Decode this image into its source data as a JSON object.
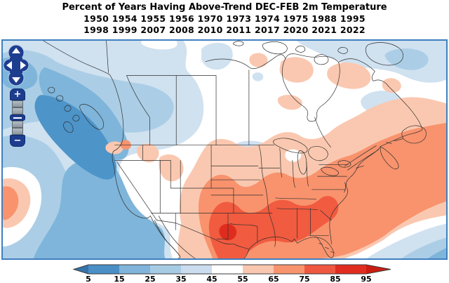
{
  "title": "Percent of Years Having Above-Trend DEC-FEB 2m Temperature",
  "years": {
    "line1": "1950 1954 1955 1956 1970 1973 1974 1975 1988 1995",
    "line2": "1998 1999 2007 2008 2010 2011 2017 2020 2021 2022"
  },
  "colorbar": {
    "ticks": [
      "5",
      "15",
      "25",
      "35",
      "45",
      "55",
      "65",
      "75",
      "85",
      "95"
    ],
    "segment_colors": [
      "#4a90c6",
      "#80b4da",
      "#a8cbe4",
      "#cbdcee",
      "#ffffff",
      "#f9c7b0",
      "#f7946e",
      "#ef5741",
      "#e02d20"
    ],
    "left_arrow_color": "#3773ab",
    "right_arrow_color": "#c91d12",
    "outline_color": "#3a3a3a"
  },
  "palette": {
    "b1": "#4d94c9",
    "b2": "#7fb5da",
    "b3": "#abcee6",
    "b4": "#d0e1f0",
    "w": "#ffffff",
    "r1": "#fac8b0",
    "r2": "#f8936d",
    "r3": "#f15b40",
    "r4": "#de2d1e"
  },
  "map_controls": {
    "zoom_in": "+",
    "zoom_out": "−"
  },
  "map": {
    "frame_color": "#3f7fbf",
    "border_line_color": "#2f2f2f"
  }
}
